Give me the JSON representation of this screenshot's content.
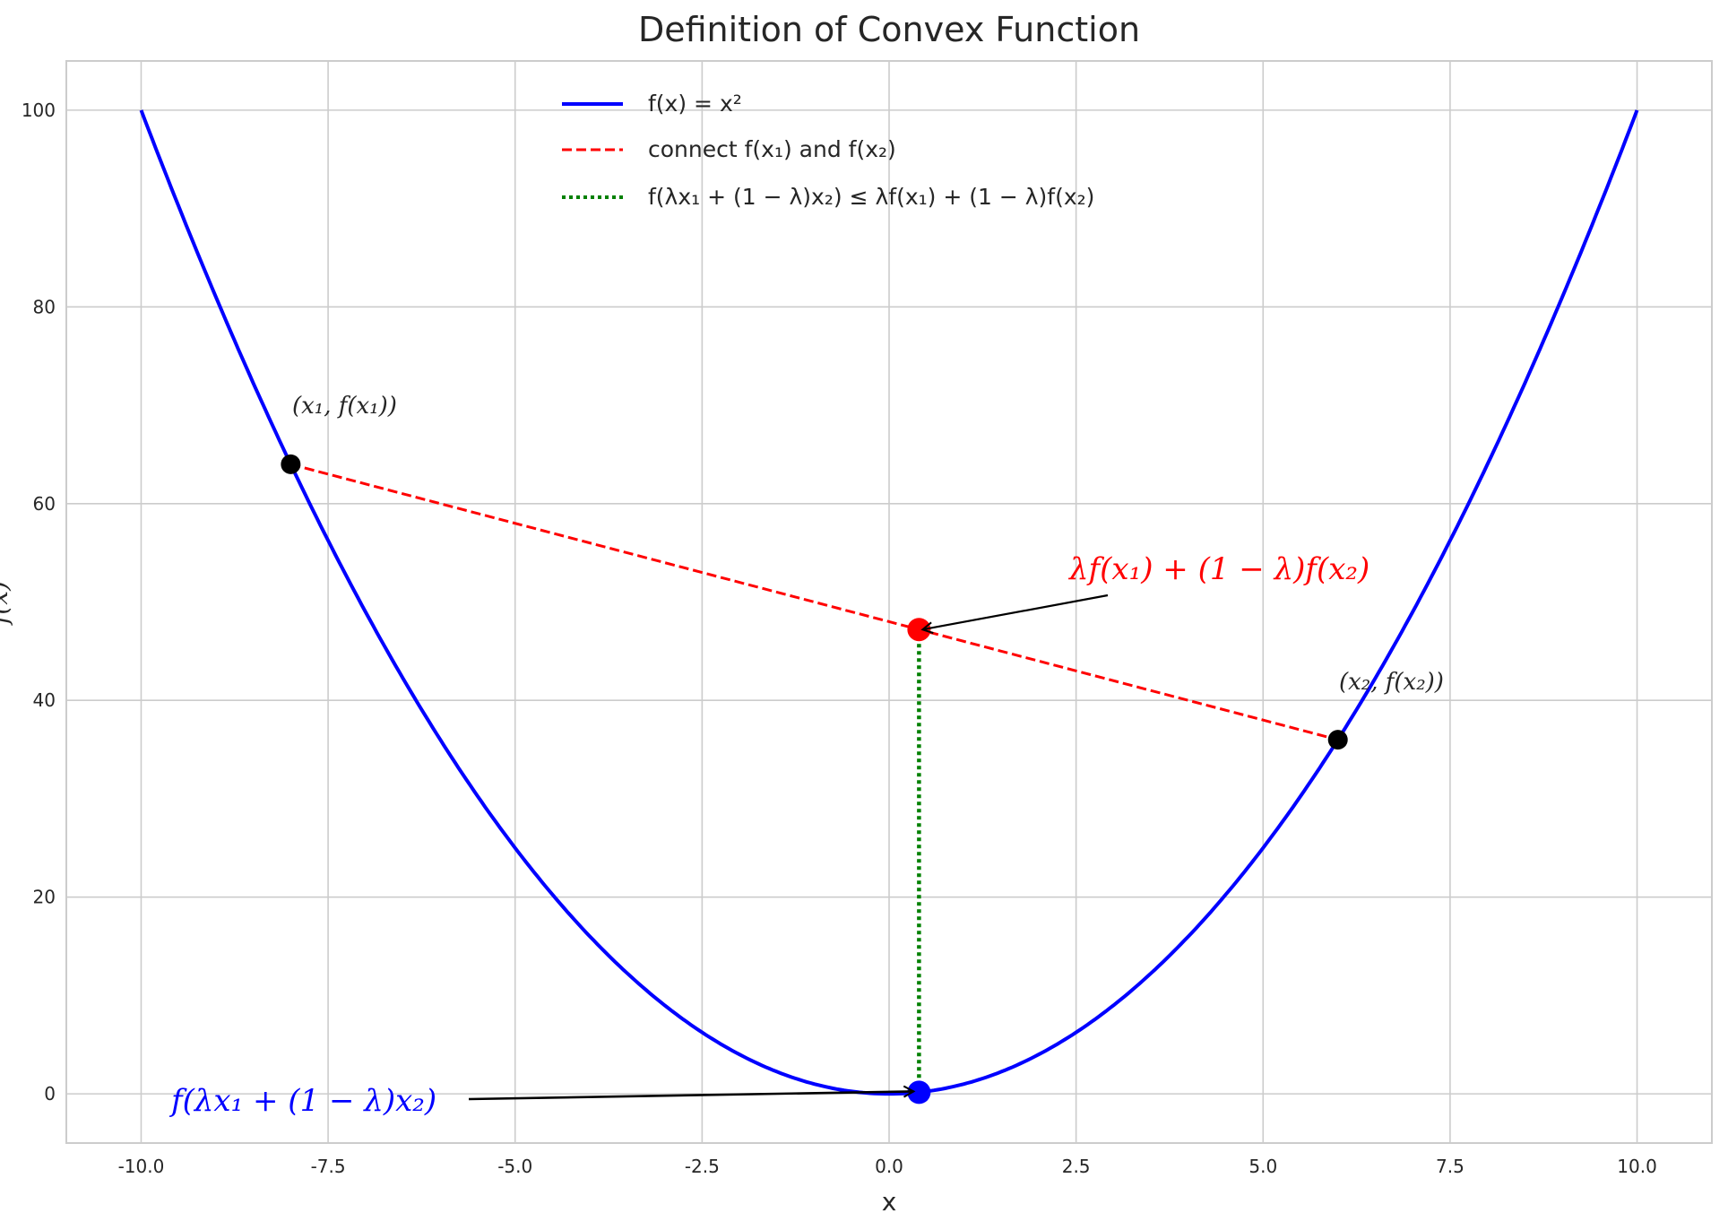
{
  "chart_data": {
    "type": "line",
    "title": "Definition of Convex Function",
    "xlabel": "x",
    "ylabel": "f(x)",
    "xlim": [
      -11,
      11
    ],
    "ylim": [
      -5,
      105
    ],
    "xticks": [
      -10,
      -7.5,
      -5,
      -2.5,
      0,
      2.5,
      5,
      7.5,
      10
    ],
    "xtick_labels": [
      "-10.0",
      "-7.5",
      "-5.0",
      "-2.5",
      "0.0",
      "2.5",
      "5.0",
      "7.5",
      "10.0"
    ],
    "yticks": [
      0,
      20,
      40,
      60,
      80,
      100
    ],
    "ytick_labels": [
      "0",
      "20",
      "40",
      "60",
      "80",
      "100"
    ],
    "grid": true,
    "legend_position": "top-center",
    "function": "x^2",
    "x_range": [
      -10,
      10
    ],
    "x1": -8,
    "x2": 6,
    "lambda": 0.4,
    "points": {
      "p1": {
        "x": -8,
        "y": 64
      },
      "p2": {
        "x": 6,
        "y": 36
      },
      "chord_point": {
        "x": 0.4,
        "y": 47.2
      },
      "curve_point": {
        "x": 0.4,
        "y": 0.16
      }
    },
    "series": [
      {
        "name": "f(x) = x²",
        "color": "#0000ff",
        "style": "solid"
      },
      {
        "name": "connect f(x₁) and f(x₂)",
        "color": "#ff0000",
        "style": "dashed"
      },
      {
        "name": "f(λx₁ + (1 − λ)x₂) ≤ λf(x₁) + (1 − λ)f(x₂)",
        "color": "#008000",
        "style": "dotted"
      }
    ],
    "annotations": {
      "p1_label": "(x₁, f(x₁))",
      "p2_label": "(x₂, f(x₂))",
      "chord_label": "λf(x₁) + (1 − λ)f(x₂)",
      "curve_label": "f(λx₁ + (1 − λ)x₂)"
    }
  }
}
